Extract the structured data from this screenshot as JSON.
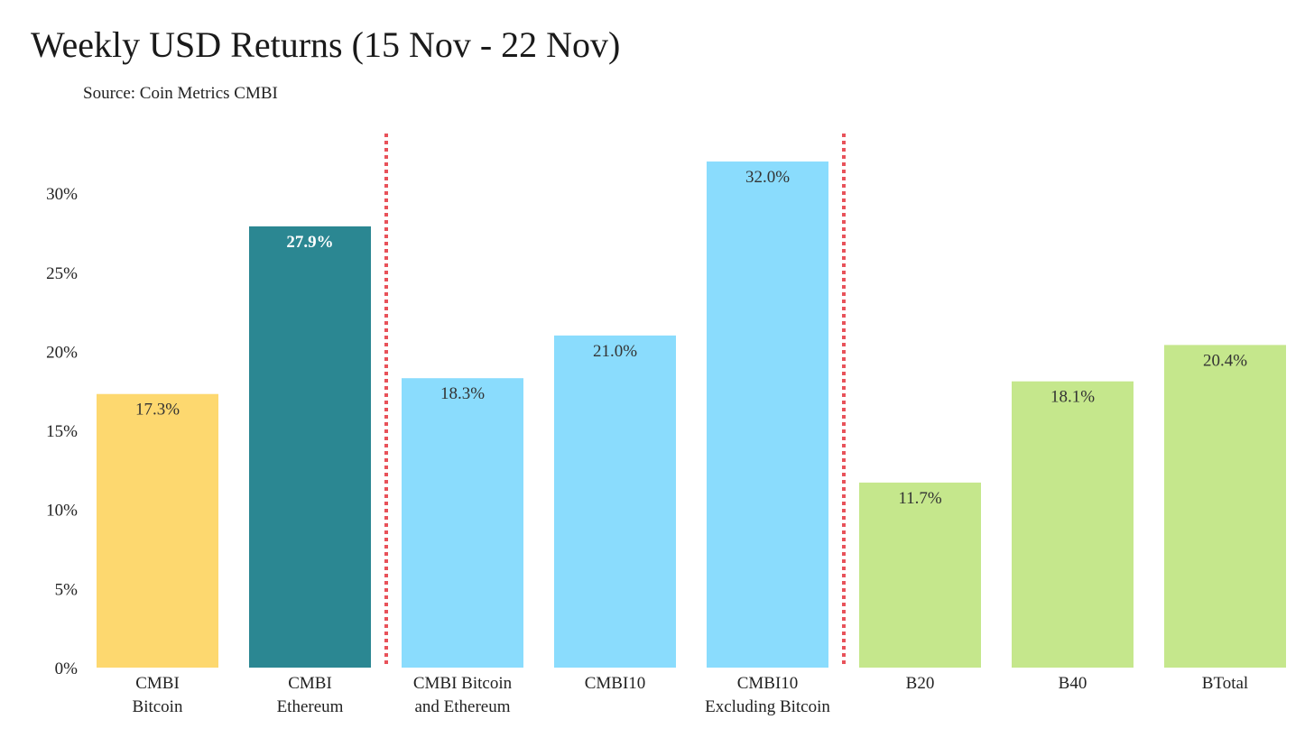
{
  "chart_data": {
    "type": "bar",
    "title": "Weekly USD Returns (15 Nov - 22 Nov)",
    "subtitle": "Source: Coin Metrics CMBI",
    "xlabel": "",
    "ylabel": "",
    "ylim": [
      0,
      34
    ],
    "y_ticks": [
      0,
      5,
      10,
      15,
      20,
      25,
      30
    ],
    "y_tick_labels": [
      "0%",
      "5%",
      "10%",
      "15%",
      "20%",
      "25%",
      "30%"
    ],
    "categories": [
      [
        "CMBI",
        "Bitcoin"
      ],
      [
        "CMBI",
        "Ethereum"
      ],
      [
        "CMBI Bitcoin",
        "and Ethereum"
      ],
      [
        "CMBI10"
      ],
      [
        "CMBI10",
        "Excluding Bitcoin"
      ],
      [
        "B20"
      ],
      [
        "B40"
      ],
      [
        "BTotal"
      ]
    ],
    "values": [
      17.3,
      27.9,
      18.3,
      21.0,
      32.0,
      11.7,
      18.1,
      20.4
    ],
    "data_labels": [
      "17.3%",
      "27.9%",
      "18.3%",
      "21.0%",
      "32.0%",
      "11.7%",
      "18.1%",
      "20.4%"
    ],
    "bar_colors": [
      "#FDD86F",
      "#2B8792",
      "#8ADCFD",
      "#8ADCFD",
      "#8ADCFD",
      "#C5E78C",
      "#C5E78C",
      "#C5E78C"
    ],
    "label_colors": [
      "#333333",
      "#ffffff",
      "#333333",
      "#333333",
      "#333333",
      "#333333",
      "#333333",
      "#333333"
    ],
    "label_bold": [
      false,
      true,
      false,
      false,
      false,
      false,
      false,
      false
    ],
    "group_separators_after_index": [
      1,
      4
    ],
    "separator_color": "#E8525A",
    "grid": false,
    "legend": "none"
  }
}
